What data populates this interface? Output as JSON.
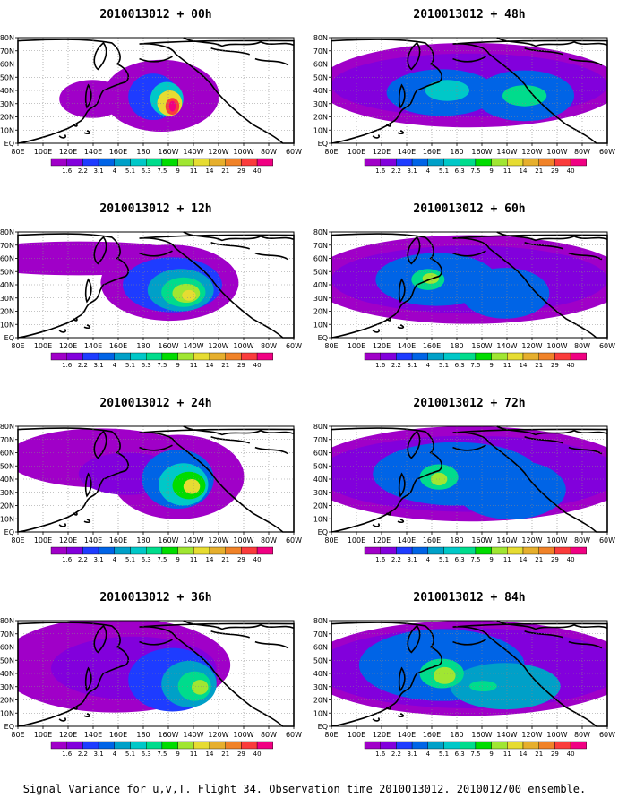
{
  "figure": {
    "caption": "Signal Variance for u,v,T. Flight 34. Observation time 2010013012. 2010012700 ensemble."
  },
  "map_axes": {
    "lon_labels": [
      "80E",
      "100E",
      "120E",
      "140E",
      "160E",
      "180",
      "160W",
      "140W",
      "120W",
      "100W",
      "80W",
      "60W"
    ],
    "lat_labels": [
      "EQ",
      "10N",
      "20N",
      "30N",
      "40N",
      "50N",
      "60N",
      "70N",
      "80N"
    ],
    "grid": "dotted"
  },
  "colorbar": {
    "labels": [
      "1.6",
      "2.2",
      "3.1",
      "4",
      "5.1",
      "6.3",
      "7.5",
      "9",
      "11",
      "14",
      "21",
      "29",
      "40"
    ],
    "colors": [
      "#a000c8",
      "#8200dc",
      "#1e3cff",
      "#0064e6",
      "#00a0c8",
      "#00c8c8",
      "#00dc8c",
      "#00dc00",
      "#a0e632",
      "#e6dc32",
      "#e6af2d",
      "#f08228",
      "#fa3c3c",
      "#f00082"
    ]
  },
  "panels": [
    {
      "title": "2010013012 + 00h",
      "column": "left",
      "row": 0
    },
    {
      "title": "2010013012 + 12h",
      "column": "left",
      "row": 1
    },
    {
      "title": "2010013012 + 24h",
      "column": "left",
      "row": 2
    },
    {
      "title": "2010013012 + 36h",
      "column": "left",
      "row": 3
    },
    {
      "title": "2010013012 + 48h",
      "column": "right",
      "row": 0
    },
    {
      "title": "2010013012 + 60h",
      "column": "right",
      "row": 1
    },
    {
      "title": "2010013012 + 72h",
      "column": "right",
      "row": 2
    },
    {
      "title": "2010013012 + 84h",
      "column": "right",
      "row": 3
    }
  ]
}
